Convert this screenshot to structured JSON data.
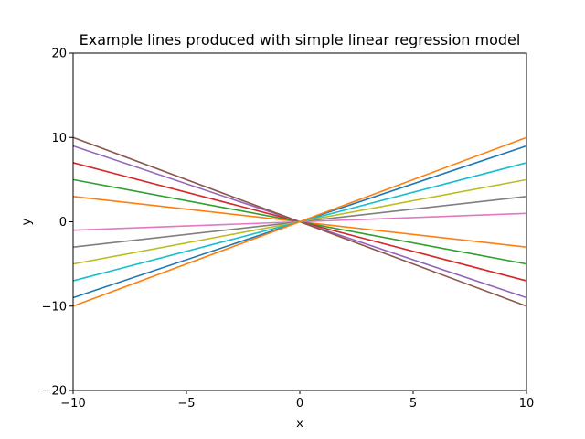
{
  "chart_data": {
    "type": "line",
    "title": "Example lines produced with simple linear regression model",
    "xlabel": "x",
    "ylabel": "y",
    "xlim": [
      -10,
      10
    ],
    "ylim": [
      -20,
      20
    ],
    "grid": false,
    "x": [
      -10,
      10
    ],
    "xticks": [
      -10,
      -5,
      0,
      5,
      10
    ],
    "xtick_labels": [
      "−10",
      "−5",
      "0",
      "5",
      "10"
    ],
    "yticks": [
      -20,
      -10,
      0,
      10,
      20
    ],
    "ytick_labels": [
      "−20",
      "−10",
      "0",
      "10",
      "20"
    ],
    "series": [
      {
        "values": [
          -9,
          9
        ],
        "color": "#1f77b4"
      },
      {
        "values": [
          3,
          -3
        ],
        "color": "#ff7f0e"
      },
      {
        "values": [
          5,
          -5
        ],
        "color": "#2ca02c"
      },
      {
        "values": [
          7,
          -7
        ],
        "color": "#d62728"
      },
      {
        "values": [
          9,
          -9
        ],
        "color": "#9467bd"
      },
      {
        "values": [
          10,
          -10
        ],
        "color": "#8c564b"
      },
      {
        "values": [
          -1,
          1
        ],
        "color": "#e377c2"
      },
      {
        "values": [
          -3,
          3
        ],
        "color": "#7f7f7f"
      },
      {
        "values": [
          -5,
          5
        ],
        "color": "#bcbd22"
      },
      {
        "values": [
          -7,
          7
        ],
        "color": "#17becf"
      },
      {
        "values": [
          -10,
          10
        ],
        "color": "#ff7f0e"
      }
    ]
  }
}
